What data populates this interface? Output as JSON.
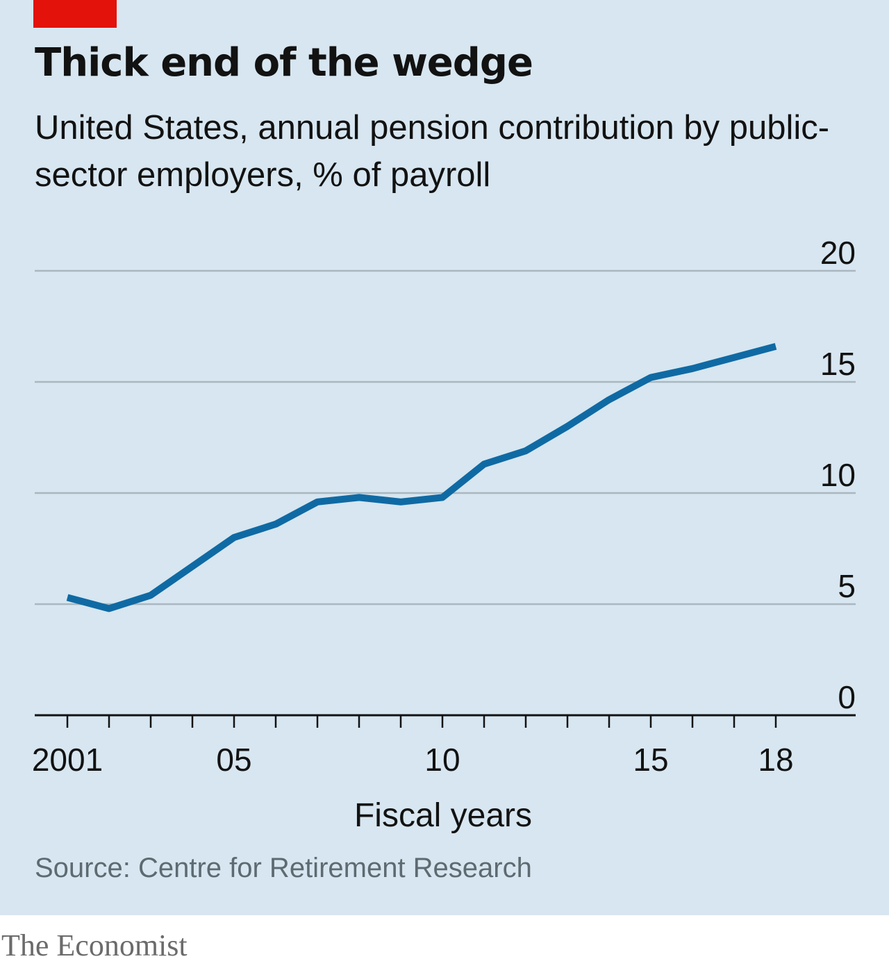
{
  "title": "Thick end of the wedge",
  "subtitle": "United States, annual pension contribution by public-sector employers, % of payroll",
  "source": "Source: Centre for Retirement Research",
  "brand": "The Economist",
  "colors": {
    "background": "#d7e6f0",
    "accent_tag": "#e3120b",
    "line": "#0f6aa4",
    "grid": "#aab7c0",
    "text": "#121212",
    "source_text": "#5e6a71"
  },
  "chart_data": {
    "type": "line",
    "title": "Thick end of the wedge",
    "subtitle": "United States, annual pension contribution by public-sector employers, % of payroll",
    "xlabel": "Fiscal years",
    "ylabel": "",
    "x": [
      2001,
      2002,
      2003,
      2004,
      2005,
      2006,
      2007,
      2008,
      2009,
      2010,
      2011,
      2012,
      2013,
      2014,
      2015,
      2016,
      2017,
      2018
    ],
    "series": [
      {
        "values": [
          5.3,
          4.8,
          5.4,
          6.7,
          8.0,
          8.6,
          9.6,
          9.8,
          9.6,
          9.8,
          11.3,
          11.9,
          13.0,
          14.2,
          15.2,
          15.6,
          16.1,
          16.6
        ]
      }
    ],
    "ylim": [
      0,
      20
    ],
    "xlim": [
      2001,
      2018
    ],
    "y_ticks": [
      0,
      5,
      10,
      15,
      20
    ],
    "y_tick_labels": [
      "0",
      "5",
      "10",
      "15",
      "20"
    ],
    "x_tick_marks": [
      2001,
      2002,
      2003,
      2004,
      2005,
      2006,
      2007,
      2008,
      2009,
      2010,
      2011,
      2012,
      2013,
      2014,
      2015,
      2016,
      2017,
      2018
    ],
    "x_tick_labels": [
      {
        "value": 2001,
        "label": "2001"
      },
      {
        "value": 2005,
        "label": "05"
      },
      {
        "value": 2010,
        "label": "10"
      },
      {
        "value": 2015,
        "label": "15"
      },
      {
        "value": 2018,
        "label": "18"
      }
    ],
    "grid": true,
    "y_axis_position": "right",
    "legend": "none"
  }
}
